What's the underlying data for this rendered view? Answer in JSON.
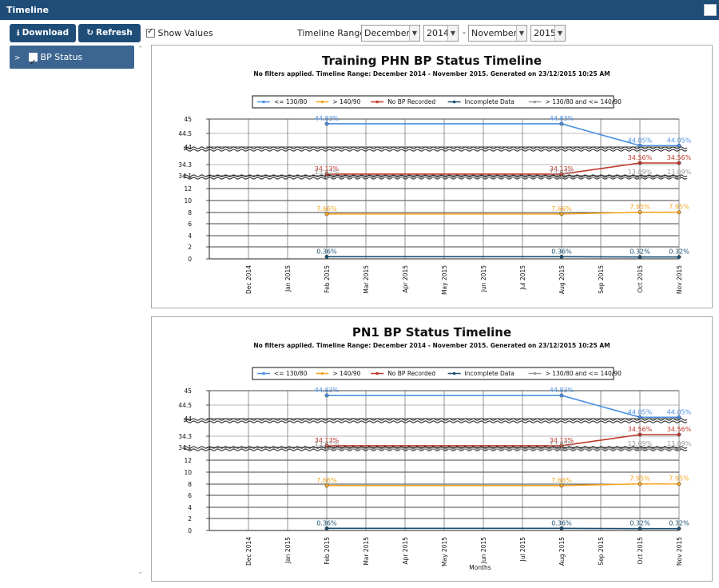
{
  "window": {
    "title": "Timeline"
  },
  "toolbar": {
    "download_label": "Download",
    "refresh_label": "Refresh",
    "show_values_label": "Show Values",
    "show_values_checked": true,
    "range_label": "Timeline Range:",
    "range_separator": "-",
    "from_month": "December",
    "from_year": "2014",
    "to_month": "November",
    "to_year": "2015"
  },
  "sidebar": {
    "items": [
      {
        "label": "BP Status",
        "checked": true
      }
    ]
  },
  "chart_data": [
    {
      "type": "line",
      "title": "Training PHN BP Status Timeline",
      "subtitle": "No filters applied. Timeline Range: December 2014 - November 2015. Generated on 23/12/2015 10:25 AM",
      "xlabel": "",
      "categories": [
        "Dec 2014",
        "Jan 2015",
        "Feb 2015",
        "Mar 2015",
        "Apr 2015",
        "May 2015",
        "Jun 2015",
        "Jul 2015",
        "Aug 2015",
        "Sep 2015",
        "Oct 2015",
        "Nov 2015"
      ],
      "y_ticks": [
        "45",
        "44.5",
        "44",
        "34.3",
        "34.1",
        "12",
        "10",
        "8",
        "6",
        "4",
        "2",
        "0"
      ],
      "axis_breaks": [
        [
          14,
          34
        ],
        [
          34.3,
          44
        ]
      ],
      "legend_placement": "top-center",
      "grid": true,
      "series": [
        {
          "name": "<= 130/80",
          "color": "#4a90e2",
          "x": [
            "Feb 2015",
            "Aug 2015",
            "Oct 2015",
            "Nov 2015"
          ],
          "values": [
            44.83,
            44.83,
            44.05,
            44.05
          ],
          "labels": [
            "44.83%",
            "44.83%",
            "44.05%",
            "44.05%"
          ]
        },
        {
          "name": "> 140/90",
          "color": "#f5a623",
          "x": [
            "Feb 2015",
            "Aug 2015",
            "Oct 2015",
            "Nov 2015"
          ],
          "values": [
            7.66,
            7.66,
            7.95,
            7.95
          ],
          "labels": [
            "7.66%",
            "7.66%",
            "7.95%",
            "7.95%"
          ]
        },
        {
          "name": "No BP Recorded",
          "color": "#c0392b",
          "x": [
            "Feb 2015",
            "Aug 2015",
            "Oct 2015",
            "Nov 2015"
          ],
          "values": [
            34.13,
            34.13,
            34.56,
            34.56
          ],
          "labels": [
            "34.13%",
            "34.13%",
            "34.56%",
            "34.56%"
          ]
        },
        {
          "name": "Incomplete Data",
          "color": "#1a4f72",
          "x": [
            "Feb 2015",
            "Aug 2015",
            "Oct 2015",
            "Nov 2015"
          ],
          "values": [
            0.36,
            0.36,
            0.32,
            0.32
          ],
          "labels": [
            "0.36%",
            "0.36%",
            "0.32%",
            "0.32%"
          ]
        },
        {
          "name": "> 130/80 and <= 140/90",
          "color": "#9b9b9b",
          "x": [
            "Feb 2015",
            "Aug 2015",
            "Oct 2015",
            "Nov 2015"
          ],
          "values": [
            13.02,
            13.02,
            13.09,
            13.09
          ],
          "labels": [
            "13.02%",
            "13.02%",
            "13.09%",
            "13.09%"
          ]
        }
      ]
    },
    {
      "type": "line",
      "title": "PN1 BP Status Timeline",
      "subtitle": "No filters applied. Timeline Range: December 2014 - November 2015. Generated on 23/12/2015 10:25 AM",
      "xlabel": "Months",
      "categories": [
        "Dec 2014",
        "Jan 2015",
        "Feb 2015",
        "Mar 2015",
        "Apr 2015",
        "May 2015",
        "Jun 2015",
        "Jul 2015",
        "Aug 2015",
        "Sep 2015",
        "Oct 2015",
        "Nov 2015"
      ],
      "y_ticks": [
        "45",
        "44.5",
        "44",
        "34.3",
        "34.1",
        "12",
        "10",
        "8",
        "6",
        "4",
        "2",
        "0"
      ],
      "axis_breaks": [
        [
          14,
          34
        ],
        [
          34.3,
          44
        ]
      ],
      "legend_placement": "top-center",
      "grid": true,
      "series": [
        {
          "name": "<= 130/80",
          "color": "#4a90e2",
          "x": [
            "Feb 2015",
            "Aug 2015",
            "Oct 2015",
            "Nov 2015"
          ],
          "values": [
            44.83,
            44.83,
            44.05,
            44.05
          ],
          "labels": [
            "44.83%",
            "44.83%",
            "44.05%",
            "44.05%"
          ]
        },
        {
          "name": "> 140/90",
          "color": "#f5a623",
          "x": [
            "Feb 2015",
            "Aug 2015",
            "Oct 2015",
            "Nov 2015"
          ],
          "values": [
            7.66,
            7.66,
            7.95,
            7.95
          ],
          "labels": [
            "7.66%",
            "7.66%",
            "7.95%",
            "7.95%"
          ]
        },
        {
          "name": "No BP Recorded",
          "color": "#c0392b",
          "x": [
            "Feb 2015",
            "Aug 2015",
            "Oct 2015",
            "Nov 2015"
          ],
          "values": [
            34.13,
            34.13,
            34.56,
            34.56
          ],
          "labels": [
            "34.13%",
            "34.13%",
            "34.56%",
            "34.56%"
          ]
        },
        {
          "name": "Incomplete Data",
          "color": "#1a4f72",
          "x": [
            "Feb 2015",
            "Aug 2015",
            "Oct 2015",
            "Nov 2015"
          ],
          "values": [
            0.36,
            0.36,
            0.32,
            0.32
          ],
          "labels": [
            "0.36%",
            "0.36%",
            "0.32%",
            "0.32%"
          ]
        },
        {
          "name": "> 130/80 and <= 140/90",
          "color": "#9b9b9b",
          "x": [
            "Feb 2015",
            "Aug 2015",
            "Oct 2015",
            "Nov 2015"
          ],
          "values": [
            13.02,
            13.02,
            13.09,
            13.09
          ],
          "labels": [
            "13.02%",
            "13.02%",
            "13.09%",
            "13.09%"
          ]
        }
      ]
    }
  ]
}
